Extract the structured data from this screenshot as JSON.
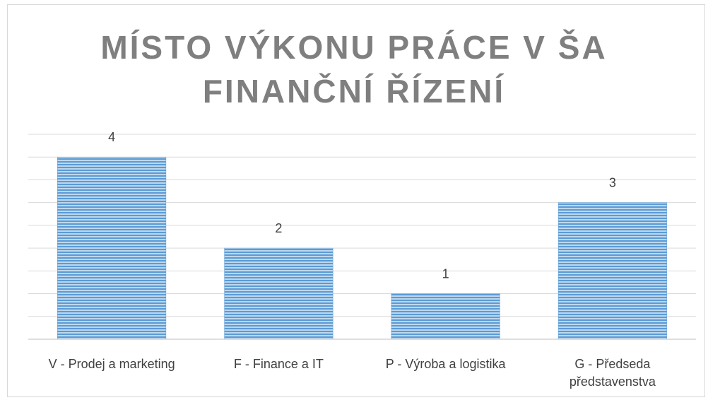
{
  "chart_data": {
    "type": "bar",
    "title": "MÍSTO VÝKONU PRÁCE V ŠA FINANČNÍ ŘÍZENÍ",
    "categories": [
      "V - Prodej a marketing",
      "F - Finance a IT",
      "P - Výroba a logistika",
      "G - Předseda představenstva"
    ],
    "values": [
      4,
      2,
      1,
      3
    ],
    "color": "#5b9bd5",
    "ylim": [
      0,
      4.5
    ],
    "yticks": [
      0,
      0.5,
      1,
      1.5,
      2,
      2.5,
      3,
      3.5,
      4,
      4.5
    ],
    "grid": true
  }
}
